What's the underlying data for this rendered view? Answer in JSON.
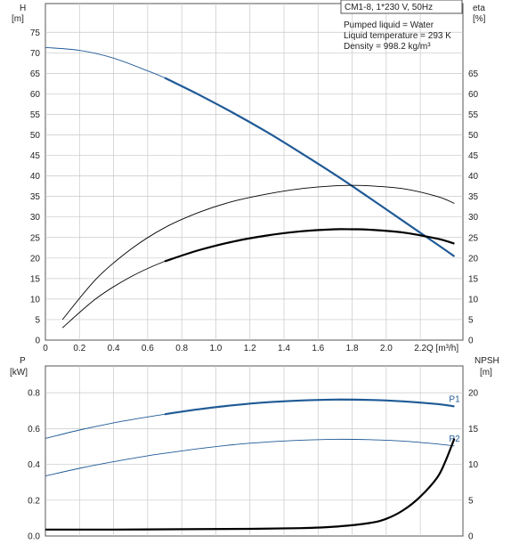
{
  "header": {
    "model": "CM1-8, 1*230 V, 50Hz",
    "info_lines": [
      "Pumped liquid = Water",
      "Liquid temperature = 293 K",
      "Density = 998.2 kg/m³"
    ]
  },
  "colors": {
    "blue": "#1f5a96",
    "black": "#000000",
    "grid": "#c8c8c8",
    "axis": "#555555"
  },
  "chart_data": [
    {
      "type": "line",
      "panel": "top",
      "xlabel": "Q [m³/h]",
      "ylabel_left": [
        "H",
        "[m]"
      ],
      "ylabel_right": [
        "eta",
        "[%]"
      ],
      "xlim": [
        0,
        2.45
      ],
      "ylim": [
        0,
        82
      ],
      "y2lim": [
        0,
        82
      ],
      "x_ticks": [
        "0",
        "0.2",
        "0.4",
        "0.6",
        "0.8",
        "1.0",
        "1.2",
        "1.4",
        "1.6",
        "1.8",
        "2.0",
        "2.2"
      ],
      "x_tick_values": [
        0,
        0.2,
        0.4,
        0.6,
        0.8,
        1.0,
        1.2,
        1.4,
        1.6,
        1.8,
        2.0,
        2.2
      ],
      "y_ticks": [
        "0",
        "5",
        "10",
        "15",
        "20",
        "25",
        "30",
        "35",
        "40",
        "45",
        "50",
        "55",
        "60",
        "65",
        "70",
        "75"
      ],
      "y_tick_values": [
        0,
        5,
        10,
        15,
        20,
        25,
        30,
        35,
        40,
        45,
        50,
        55,
        60,
        65,
        70,
        75
      ],
      "y2_ticks": [
        "0",
        "5",
        "10",
        "15",
        "20",
        "25",
        "30",
        "35",
        "40",
        "45",
        "50",
        "55",
        "60",
        "65"
      ],
      "y2_tick_values": [
        0,
        5,
        10,
        15,
        20,
        25,
        30,
        35,
        40,
        45,
        50,
        55,
        60,
        65
      ],
      "grid": true,
      "series": [
        {
          "id": "head",
          "color": "blue",
          "axis": "left",
          "x": [
            0,
            0.2,
            0.4,
            0.6,
            0.7,
            0.9,
            1.1,
            1.3,
            1.5,
            1.7,
            1.9,
            2.1,
            2.3,
            2.4
          ],
          "y": [
            71.3,
            70.6,
            68.7,
            65.6,
            63.9,
            59.8,
            55.4,
            50.7,
            45.6,
            40.3,
            34.7,
            29.0,
            23.3,
            20.4
          ],
          "thick_from": 0.7
        },
        {
          "id": "eta_pump",
          "color": "black",
          "axis": "right",
          "x": [
            0.1,
            0.3,
            0.5,
            0.7,
            0.9,
            1.1,
            1.3,
            1.5,
            1.7,
            1.8,
            1.9,
            2.1,
            2.3,
            2.4
          ],
          "y": [
            5.0,
            15.0,
            22.1,
            27.4,
            31.1,
            33.8,
            35.6,
            36.9,
            37.6,
            37.7,
            37.6,
            36.9,
            35.0,
            33.3
          ],
          "thick_from": 99
        },
        {
          "id": "eta_total",
          "color": "black",
          "axis": "right",
          "x": [
            0.1,
            0.3,
            0.5,
            0.7,
            0.9,
            1.1,
            1.3,
            1.5,
            1.7,
            1.8,
            1.9,
            2.1,
            2.3,
            2.4
          ],
          "y": [
            3.0,
            10.2,
            15.4,
            19.2,
            21.9,
            24.0,
            25.5,
            26.5,
            27.0,
            27.0,
            26.9,
            26.2,
            24.7,
            23.5
          ],
          "thick_from": 0.7
        }
      ]
    },
    {
      "type": "line",
      "panel": "bottom",
      "ylabel_left": [
        "P",
        "[kW]"
      ],
      "ylabel_right": [
        "NPSH",
        "[m]"
      ],
      "xlim": [
        0,
        2.45
      ],
      "ylim": [
        0,
        0.95
      ],
      "y2lim": [
        0,
        23.75
      ],
      "y_ticks": [
        "0.0",
        "0.2",
        "0.4",
        "0.6",
        "0.8"
      ],
      "y_tick_values": [
        0,
        0.2,
        0.4,
        0.6,
        0.8
      ],
      "y2_ticks": [
        "0",
        "5",
        "10",
        "15",
        "20"
      ],
      "y2_tick_values": [
        0,
        5,
        10,
        15,
        20
      ],
      "grid": true,
      "series": [
        {
          "id": "p1",
          "name": "P1",
          "color": "blue",
          "axis": "left",
          "x": [
            0,
            0.2,
            0.4,
            0.6,
            0.7,
            0.9,
            1.1,
            1.3,
            1.5,
            1.7,
            1.9,
            2.1,
            2.3,
            2.4
          ],
          "y": [
            0.545,
            0.592,
            0.632,
            0.665,
            0.68,
            0.708,
            0.73,
            0.747,
            0.757,
            0.762,
            0.76,
            0.752,
            0.737,
            0.724
          ],
          "thick_from": 0.7
        },
        {
          "id": "p2",
          "name": "P2",
          "color": "blue",
          "axis": "left",
          "x": [
            0,
            0.2,
            0.4,
            0.6,
            0.7,
            0.9,
            1.1,
            1.3,
            1.5,
            1.7,
            1.9,
            2.1,
            2.3,
            2.4
          ],
          "y": [
            0.335,
            0.378,
            0.415,
            0.448,
            0.462,
            0.488,
            0.51,
            0.525,
            0.535,
            0.54,
            0.538,
            0.53,
            0.514,
            0.503
          ],
          "thick_from": 99
        },
        {
          "id": "npsh",
          "color": "black",
          "axis": "right",
          "x": [
            0,
            0.4,
            0.8,
            1.2,
            1.5,
            1.7,
            1.9,
            2.0,
            2.1,
            2.2,
            2.3,
            2.35,
            2.4
          ],
          "y": [
            0.9,
            0.9,
            0.95,
            1.0,
            1.1,
            1.3,
            1.8,
            2.4,
            3.6,
            5.5,
            8.2,
            10.6,
            13.6
          ],
          "thick_from": 0
        }
      ]
    }
  ]
}
